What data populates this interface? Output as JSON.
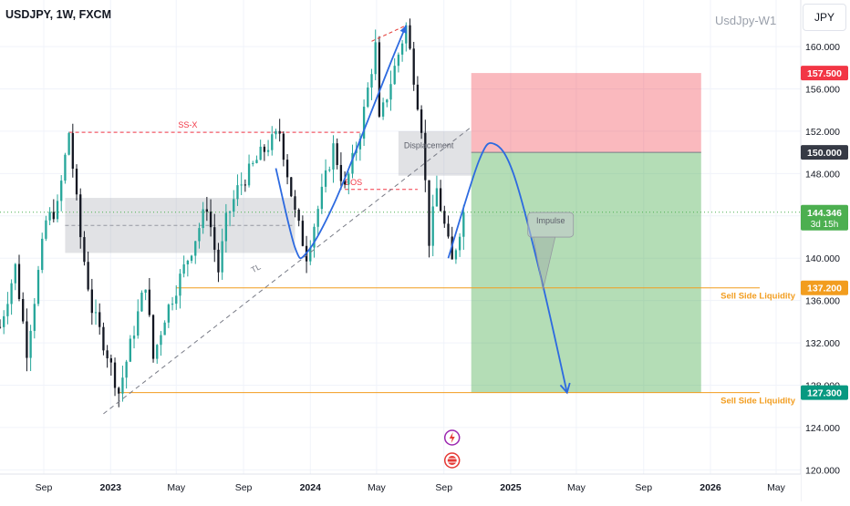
{
  "header": {
    "symbol_title": "USDJPY, 1W, FXCM",
    "watermark": "UsdJpy-W1",
    "currency": "JPY"
  },
  "colors": {
    "up": "#26a69a",
    "down": "#131722",
    "stop_zone": "#e57373",
    "target_zone": "#66bb6a",
    "liquidity": "#f29d1f",
    "path": "#2d6ae0",
    "bos": "#e53935",
    "current": "#4caf50"
  },
  "chart_data": {
    "type": "candlestick",
    "timeframe": "1W",
    "y_axis": {
      "range": [
        119.6,
        164.4
      ],
      "ticks": [
        120,
        124,
        128,
        132,
        136,
        140,
        144,
        148,
        152,
        156,
        160
      ],
      "tick_labels": [
        "120.000",
        "124.000",
        "128.000",
        "132.000",
        "136.000",
        "140.000",
        "144.000",
        "148.000",
        "152.000",
        "156.000",
        "160.000"
      ]
    },
    "x_axis": {
      "ticks": [
        {
          "date": "2022-09-01",
          "label": "Sep",
          "bold": false
        },
        {
          "date": "2023-01-01",
          "label": "2023",
          "bold": true
        },
        {
          "date": "2023-05-01",
          "label": "May",
          "bold": false
        },
        {
          "date": "2023-09-01",
          "label": "Sep",
          "bold": false
        },
        {
          "date": "2024-01-01",
          "label": "2024",
          "bold": true
        },
        {
          "date": "2024-05-01",
          "label": "May",
          "bold": false
        },
        {
          "date": "2024-09-01",
          "label": "Sep",
          "bold": false
        },
        {
          "date": "2025-01-01",
          "label": "2025",
          "bold": true
        },
        {
          "date": "2025-05-01",
          "label": "May",
          "bold": false
        },
        {
          "date": "2025-09-01",
          "label": "Sep",
          "bold": false
        },
        {
          "date": "2026-01-01",
          "label": "2026",
          "bold": true
        },
        {
          "date": "2026-05-01",
          "label": "May",
          "bold": false
        }
      ]
    },
    "price_tags": [
      {
        "value": 157.5,
        "label": "157.500",
        "bg": "#f23645",
        "fg": "#ffffff"
      },
      {
        "value": 150.0,
        "label": "150.000",
        "bg": "#363a45",
        "fg": "#ffffff"
      },
      {
        "value": 144.346,
        "label": "144.346",
        "label2": "3d 15h",
        "bg": "#4caf50",
        "fg": "#ffffff"
      },
      {
        "value": 137.2,
        "label": "137.200",
        "bg": "#f29d1f",
        "fg": "#ffffff"
      },
      {
        "value": 127.3,
        "label": "127.300",
        "bg": "#089981",
        "fg": "#ffffff"
      }
    ],
    "current_price": 144.346,
    "swings": [
      [
        "2022-06-13",
        133.5
      ],
      [
        "2022-07-11",
        139.2
      ],
      [
        "2022-08-01",
        131.3
      ],
      [
        "2022-09-05",
        143.5
      ],
      [
        "2022-09-26",
        144.8
      ],
      [
        "2022-10-17",
        151.9
      ],
      [
        "2022-11-07",
        142.0
      ],
      [
        "2022-11-28",
        135.2
      ],
      [
        "2022-12-26",
        131.0
      ],
      [
        "2023-01-16",
        127.3
      ],
      [
        "2023-03-06",
        137.7
      ],
      [
        "2023-03-20",
        130.5
      ],
      [
        "2023-04-10",
        134.5
      ],
      [
        "2023-05-29",
        140.9
      ],
      [
        "2023-06-26",
        145.0
      ],
      [
        "2023-07-17",
        138.8
      ],
      [
        "2023-07-31",
        143.5
      ],
      [
        "2023-08-21",
        146.5
      ],
      [
        "2023-10-02",
        149.8
      ],
      [
        "2023-11-06",
        151.9
      ],
      [
        "2023-12-04",
        144.2
      ],
      [
        "2023-12-25",
        140.3
      ],
      [
        "2024-02-12",
        150.5
      ],
      [
        "2024-03-04",
        146.5
      ],
      [
        "2024-04-01",
        151.9
      ],
      [
        "2024-04-29",
        160.0
      ],
      [
        "2024-05-06",
        152.8
      ],
      [
        "2024-06-24",
        161.9
      ],
      [
        "2024-07-22",
        152.5
      ],
      [
        "2024-08-05",
        141.7
      ],
      [
        "2024-08-19",
        146.5
      ],
      [
        "2024-09-16",
        139.6
      ],
      [
        "2024-10-07",
        144.3
      ]
    ],
    "zones": [
      {
        "name": "consolidation-zone",
        "from": "2022-10-10",
        "to": "2023-12-04",
        "low": 140.5,
        "high": 145.7,
        "color": "#9598a1"
      },
      {
        "name": "displacement-zone",
        "from": "2024-06-10",
        "to": "2024-10-21",
        "low": 147.8,
        "high": 152.0,
        "color": "#9598a1"
      },
      {
        "name": "stop-loss-zone",
        "from": "2024-10-21",
        "to": "2025-12-15",
        "low": 150.0,
        "high": 157.5,
        "color": "#f23645"
      },
      {
        "name": "take-profit-zone",
        "from": "2024-10-21",
        "to": "2025-12-15",
        "low": 127.3,
        "high": 150.0,
        "color": "#4caf50"
      }
    ],
    "levels": [
      {
        "name": "ssx-level",
        "value": 151.9,
        "from": "2022-10-17",
        "to": "2024-04-01",
        "color": "#f23645",
        "dash": "4,3",
        "label": "SS-X",
        "label_date": "2023-05-22"
      },
      {
        "name": "bos-level",
        "value": 146.5,
        "from": "2024-03-04",
        "to": "2024-07-15",
        "color": "#f23645",
        "dash": "4,3",
        "label": "BOS",
        "label_date": "2024-03-20"
      },
      {
        "name": "sell-side-liquidity-upper",
        "value": 137.2,
        "from": "2023-05-01",
        "to": "2026-04-01",
        "color": "#f29d1f",
        "dash": "",
        "label": "Sell Side Liquidity"
      },
      {
        "name": "sell-side-liquidity-lower",
        "value": 127.3,
        "from": "2023-01-16",
        "to": "2026-04-01",
        "color": "#f29d1f",
        "dash": "",
        "label": "Sell Side Liquidity"
      }
    ],
    "annotations": {
      "displacement_label": "Displacement",
      "trendline_label": "TL",
      "impulse_label": "Impulse"
    },
    "trendline": {
      "from": [
        "2022-12-19",
        125.3
      ],
      "to": [
        "2024-10-21",
        152.4
      ]
    },
    "projected_path": [
      [
        "2023-10-30",
        148.5
      ],
      [
        "2023-12-04",
        141.0
      ],
      [
        "2023-12-25",
        140.5
      ],
      [
        "2024-02-12",
        145.0
      ],
      [
        "2024-04-15",
        153.0
      ],
      [
        "2024-05-27",
        158.5
      ],
      [
        "2024-06-24",
        162.0
      ]
    ],
    "projection": [
      [
        "2024-09-09",
        140.0
      ],
      [
        "2024-11-04",
        149.2
      ],
      [
        "2024-12-02",
        150.8
      ],
      [
        "2025-01-06",
        148.0
      ],
      [
        "2025-02-24",
        138.5
      ],
      [
        "2025-04-14",
        127.3
      ]
    ],
    "peak_dashed": {
      "from": [
        "2024-04-22",
        160.5
      ],
      "to": [
        "2024-06-24",
        162.0
      ]
    }
  }
}
